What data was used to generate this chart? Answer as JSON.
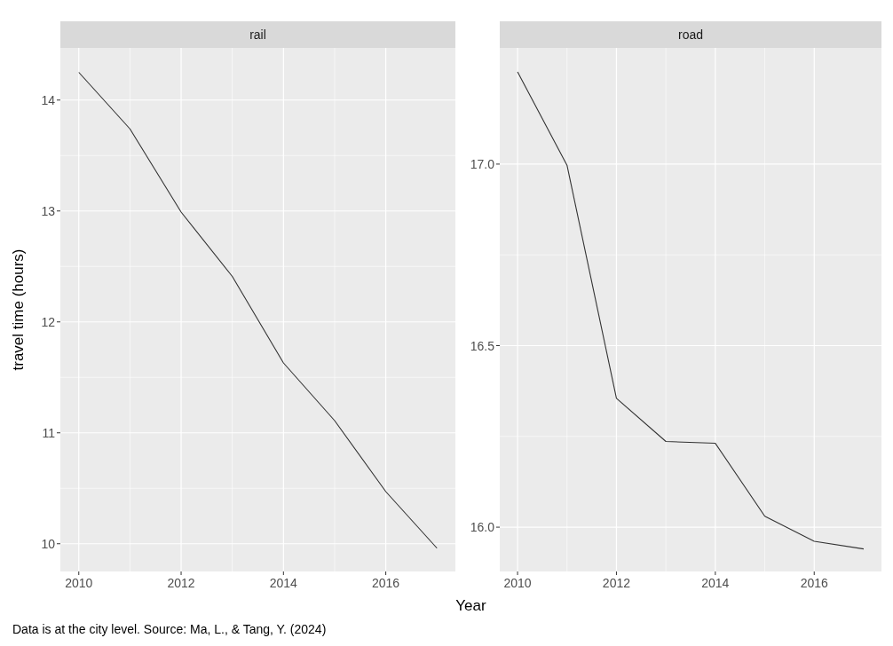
{
  "chart_data": [
    {
      "type": "line",
      "title": "rail",
      "ylabel": "travel time (hours)",
      "xlabel": "Year",
      "annotations": [
        "Data is at the city level. Source: Ma, L., & Tang, Y. (2024)"
      ],
      "x": [
        2010,
        2011,
        2012,
        2013,
        2014,
        2015,
        2016,
        2017
      ],
      "series": [
        {
          "color": "#333333",
          "values": [
            14.25,
            13.74,
            12.99,
            12.41,
            11.63,
            11.11,
            10.47,
            9.96
          ]
        }
      ],
      "xlim": [
        2009.64,
        2017.36
      ],
      "xticks": [
        2010,
        2012,
        2014,
        2016
      ],
      "ylim": [
        9.75,
        14.47
      ],
      "yticks": [
        10,
        11,
        12,
        13,
        14
      ],
      "grid": true
    },
    {
      "type": "line",
      "title": "road",
      "x": [
        2010,
        2011,
        2012,
        2013,
        2014,
        2015,
        2016,
        2017
      ],
      "series": [
        {
          "color": "#333333",
          "values": [
            17.254,
            16.997,
            16.355,
            16.236,
            16.231,
            16.03,
            15.961,
            15.94
          ]
        }
      ],
      "xlim": [
        2009.64,
        2017.36
      ],
      "xticks": [
        2010,
        2012,
        2014,
        2016
      ],
      "ylim": [
        15.878,
        17.32
      ],
      "yticks": [
        {
          "value": 16,
          "label": "16.0"
        },
        {
          "value": 16.5,
          "label": "16.5"
        },
        {
          "value": 17,
          "label": "17.0"
        }
      ],
      "grid": true
    }
  ]
}
